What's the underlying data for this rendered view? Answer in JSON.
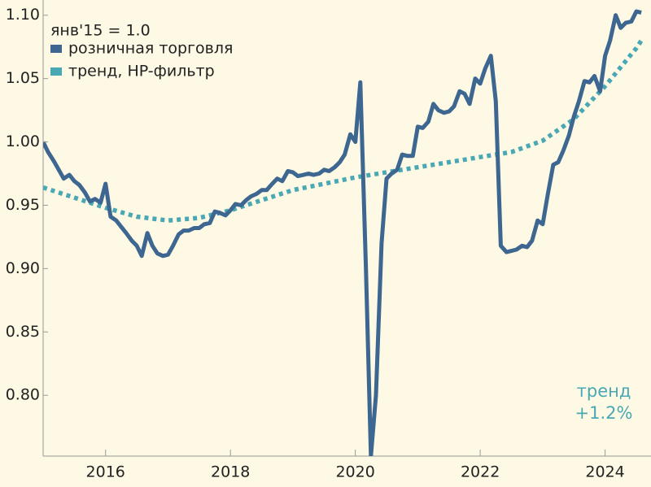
{
  "chart_data": {
    "type": "line",
    "legend_title": "янв'15 = 1.0",
    "legend_position": "upper left",
    "annotation": [
      "тренд",
      "+1.2%"
    ],
    "xlim": [
      2015,
      2024.67
    ],
    "xticks": [
      2016,
      2018,
      2020,
      2022,
      2024
    ],
    "ylim": [
      0.752,
      1.112
    ],
    "yticks": [
      {
        "value": 0.8,
        "label": "0.80"
      },
      {
        "value": 0.85,
        "label": "0.85"
      },
      {
        "value": 0.9,
        "label": "0.90"
      },
      {
        "value": 0.95,
        "label": "0.95"
      },
      {
        "value": 1.0,
        "label": "1.00"
      },
      {
        "value": 1.05,
        "label": "1.05"
      },
      {
        "value": 1.1,
        "label": "1.10"
      }
    ],
    "grid": false,
    "series": [
      {
        "name": "розничная торговля",
        "color": "#3d6690",
        "style": "solid",
        "x": [
          2015,
          2015.08,
          2015.17,
          2015.25,
          2015.33,
          2015.42,
          2015.5,
          2015.58,
          2015.67,
          2015.75,
          2015.83,
          2015.92,
          2016,
          2016.08,
          2016.17,
          2016.25,
          2016.33,
          2016.42,
          2016.5,
          2016.58,
          2016.67,
          2016.75,
          2016.83,
          2016.92,
          2017,
          2017.08,
          2017.17,
          2017.25,
          2017.33,
          2017.42,
          2017.5,
          2017.58,
          2017.67,
          2017.75,
          2017.83,
          2017.92,
          2018,
          2018.08,
          2018.17,
          2018.25,
          2018.33,
          2018.42,
          2018.5,
          2018.58,
          2018.67,
          2018.75,
          2018.83,
          2018.92,
          2019,
          2019.08,
          2019.17,
          2019.25,
          2019.33,
          2019.42,
          2019.5,
          2019.58,
          2019.67,
          2019.75,
          2019.83,
          2019.92,
          2020,
          2020.08,
          2020.17,
          2020.25,
          2020.33,
          2020.42,
          2020.5,
          2020.58,
          2020.67,
          2020.75,
          2020.83,
          2020.92,
          2021,
          2021.08,
          2021.17,
          2021.25,
          2021.33,
          2021.42,
          2021.5,
          2021.58,
          2021.67,
          2021.75,
          2021.83,
          2021.92,
          2022,
          2022.08,
          2022.17,
          2022.25,
          2022.33,
          2022.42,
          2022.5,
          2022.58,
          2022.67,
          2022.75,
          2022.83,
          2022.92,
          2023,
          2023.08,
          2023.17,
          2023.25,
          2023.33,
          2023.42,
          2023.5,
          2023.58,
          2023.67,
          2023.75,
          2023.83,
          2023.92,
          2024,
          2024.08,
          2024.17,
          2024.25,
          2024.33,
          2024.42,
          2024.5,
          2024.58
        ],
        "values": [
          1.0,
          0.992,
          0.985,
          0.978,
          0.971,
          0.974,
          0.969,
          0.966,
          0.96,
          0.953,
          0.955,
          0.952,
          0.967,
          0.941,
          0.938,
          0.933,
          0.928,
          0.922,
          0.918,
          0.91,
          0.928,
          0.918,
          0.912,
          0.91,
          0.911,
          0.918,
          0.927,
          0.93,
          0.93,
          0.932,
          0.932,
          0.935,
          0.936,
          0.945,
          0.944,
          0.942,
          0.946,
          0.951,
          0.95,
          0.954,
          0.957,
          0.959,
          0.962,
          0.962,
          0.967,
          0.971,
          0.969,
          0.977,
          0.976,
          0.973,
          0.974,
          0.975,
          0.974,
          0.975,
          0.978,
          0.977,
          0.98,
          0.984,
          0.99,
          1.006,
          1.0,
          1.047,
          0.9,
          0.752,
          0.8,
          0.92,
          0.971,
          0.975,
          0.978,
          0.99,
          0.989,
          0.989,
          1.012,
          1.011,
          1.016,
          1.03,
          1.025,
          1.023,
          1.024,
          1.028,
          1.04,
          1.038,
          1.03,
          1.05,
          1.046,
          1.058,
          1.068,
          1.032,
          0.918,
          0.913,
          0.914,
          0.915,
          0.918,
          0.917,
          0.922,
          0.938,
          0.935,
          0.958,
          0.982,
          0.984,
          0.993,
          1.005,
          1.02,
          1.032,
          1.048,
          1.047,
          1.052,
          1.04,
          1.068,
          1.08,
          1.1,
          1.09,
          1.094,
          1.095,
          1.103,
          1.102
        ]
      },
      {
        "name": "тренд, HP-фильтр",
        "color": "#4aa8b5",
        "style": "dotted",
        "x": [
          2015,
          2015.5,
          2016,
          2016.5,
          2017,
          2017.5,
          2018,
          2018.5,
          2019,
          2019.5,
          2020,
          2020.5,
          2021,
          2021.5,
          2022,
          2022.5,
          2023,
          2023.5,
          2024,
          2024.5,
          2024.58
        ],
        "values": [
          0.964,
          0.956,
          0.948,
          0.941,
          0.938,
          0.94,
          0.946,
          0.954,
          0.962,
          0.967,
          0.972,
          0.976,
          0.98,
          0.984,
          0.988,
          0.992,
          1.001,
          1.018,
          1.044,
          1.074,
          1.08
        ]
      }
    ]
  }
}
